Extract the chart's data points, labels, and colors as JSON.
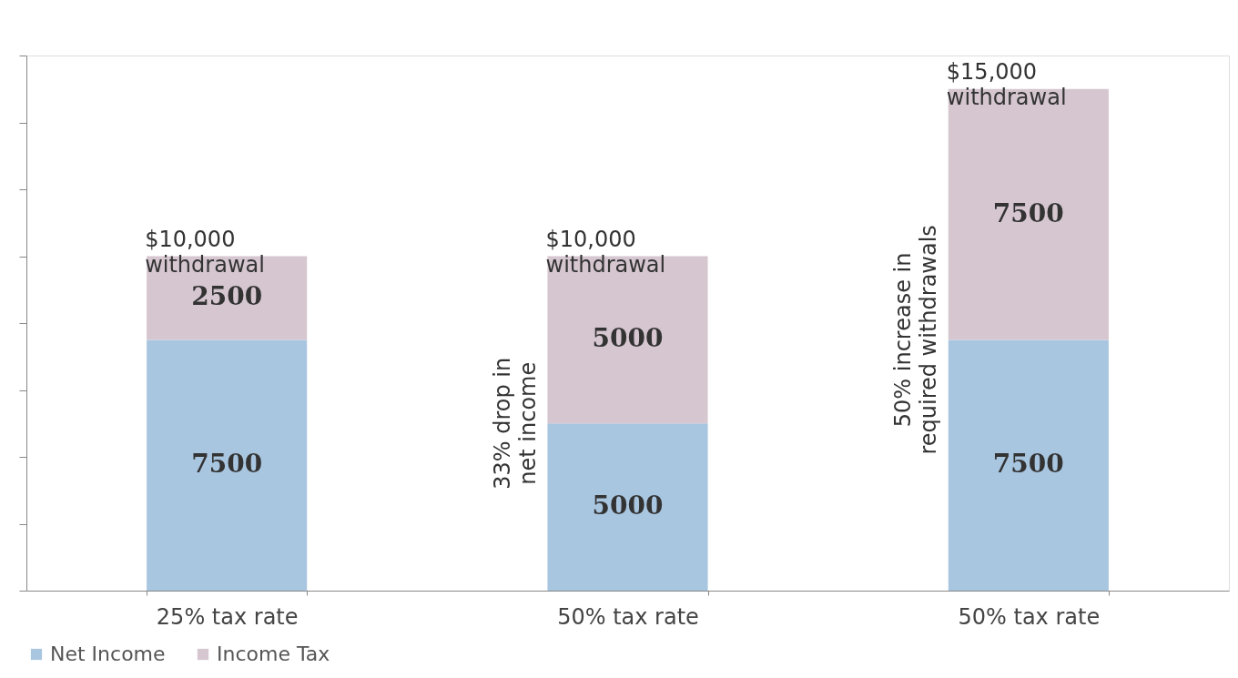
{
  "chart_data": {
    "type": "bar",
    "stacked": true,
    "categories": [
      "25% tax rate",
      "50% tax rate",
      "50% tax rate"
    ],
    "series": [
      {
        "name": "Net Income",
        "color": "#a9c6e0",
        "values": [
          7500,
          5000,
          7500
        ]
      },
      {
        "name": "Income Tax",
        "color": "#d5c6d0",
        "values": [
          2500,
          5000,
          7500
        ]
      }
    ],
    "data_labels": true,
    "ylim": [
      0,
      16000
    ],
    "yticks": [
      {
        "value": 0,
        "label": null
      },
      {
        "value": 2000,
        "label": null
      },
      {
        "value": 4000,
        "label": null
      },
      {
        "value": 6000,
        "label": null
      },
      {
        "value": 8000,
        "label": null
      },
      {
        "value": 10000,
        "label": null
      },
      {
        "value": 12000,
        "label": null
      },
      {
        "value": 14000,
        "label": null
      },
      {
        "value": 16000,
        "label": null
      }
    ],
    "tick_labels": "x",
    "grid": false,
    "legend": "bottom",
    "annotations": [
      "$10,000\nwithdrawal",
      "$10,000\nwithdrawal",
      "$15,000\nwithdrawal",
      "33% drop in\nnet income",
      "50% increase in\nrequired withdrawals"
    ]
  }
}
